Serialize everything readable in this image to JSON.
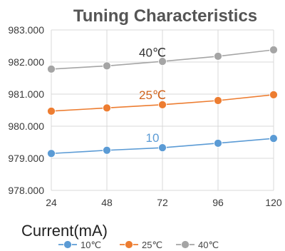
{
  "chart_data": {
    "type": "line",
    "title": "Tuning Characteristics",
    "xlabel": "Current(mA)",
    "ylabel": "",
    "categories": [
      "24",
      "48",
      "72",
      "96",
      "120"
    ],
    "ylim": [
      978.0,
      983.0
    ],
    "ytick_values": [
      978,
      979,
      980,
      981,
      982,
      983
    ],
    "yticks": [
      "978.000",
      "979.000",
      "980.000",
      "981.000",
      "982.000",
      "983.000"
    ],
    "grid": true,
    "legend_position": "bottom",
    "series": [
      {
        "name": "10℃",
        "color": "#5B9BD5",
        "values": [
          979.15,
          979.25,
          979.33,
          979.47,
          979.62
        ]
      },
      {
        "name": "25℃",
        "color": "#ED7D31",
        "values": [
          980.47,
          980.57,
          980.67,
          980.8,
          980.98
        ]
      },
      {
        "name": "40℃",
        "color": "#A5A5A5",
        "values": [
          981.78,
          981.88,
          982.02,
          982.18,
          982.38
        ]
      }
    ],
    "annotations": [
      {
        "text": "10",
        "color": "#5B9BD5",
        "series": 0
      },
      {
        "text": "25℃",
        "color": "#D0641E",
        "series": 1
      },
      {
        "text": "40℃",
        "color": "#333333",
        "series": 2
      }
    ]
  }
}
